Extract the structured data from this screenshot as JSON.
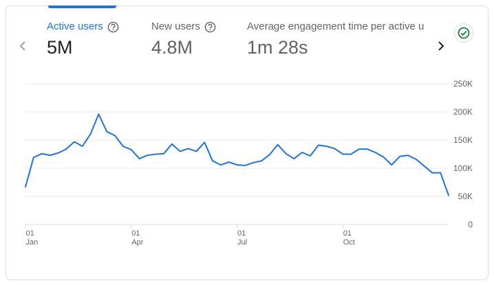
{
  "tabs": [
    {
      "label": "Active users",
      "value": "5M",
      "help_icon": "help-circle-icon",
      "active": true
    },
    {
      "label": "New users",
      "value": "4.8M",
      "help_icon": "help-circle-icon",
      "active": false
    },
    {
      "label": "Average engagement time per active us",
      "value": "1m 28s",
      "active": false
    }
  ],
  "nav": {
    "prev_icon": "chevron-left-icon",
    "next_icon": "chevron-right-icon"
  },
  "status": {
    "icon": "check-circle-icon",
    "color": "#188038"
  },
  "colors": {
    "accent": "#1a73e8",
    "line": "#1a73e8",
    "grid": "#e8eaed"
  },
  "chart_data": {
    "type": "line",
    "y_ticks": [
      "250K",
      "200K",
      "150K",
      "100K",
      "50K",
      "0"
    ],
    "ylim": [
      0,
      250000
    ],
    "x_tick_labels": [
      {
        "day": "01",
        "month": "Jan",
        "week": 0
      },
      {
        "day": "01",
        "month": "Apr",
        "week": 13
      },
      {
        "day": "01",
        "month": "Jul",
        "week": 26
      },
      {
        "day": "01",
        "month": "Oct",
        "week": 39
      }
    ],
    "series": [
      {
        "values": [
          67000,
          119000,
          126000,
          123000,
          127000,
          134000,
          147000,
          139000,
          161000,
          196000,
          165000,
          158000,
          139000,
          133000,
          117000,
          123000,
          125000,
          126000,
          143000,
          130000,
          135000,
          130000,
          146000,
          113000,
          106000,
          111000,
          106000,
          105000,
          110000,
          113000,
          124000,
          142000,
          126000,
          117000,
          128000,
          122000,
          141000,
          139000,
          135000,
          125000,
          125000,
          134000,
          134000,
          128000,
          120000,
          106000,
          121000,
          123000,
          116000,
          104000,
          92000,
          92000,
          52000
        ]
      }
    ]
  }
}
